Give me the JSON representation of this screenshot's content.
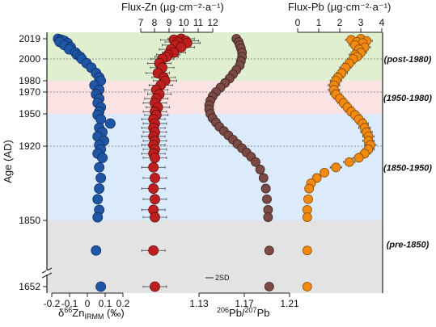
{
  "chart_data": {
    "type": "scatter",
    "colors": {
      "zn_isotope": "#1f57a6",
      "zn_flux": "#c01f1f",
      "pb_ratio": "#7b4a45",
      "pb_flux": "#f28a10",
      "band_post1980": "#e0efd0",
      "band_1950_1980": "#fbe3e3",
      "band_1850_1950": "#dcebfb",
      "band_pre1850": "#e3e3e3"
    },
    "y_axis": {
      "label": "Age (AD)",
      "ticks": [
        "2019",
        "2000",
        "1980",
        "1970",
        "1950",
        "1920",
        "1850",
        "1652"
      ],
      "break": "between 1850 and 1652"
    },
    "periods": [
      {
        "label": "(post-1980)",
        "from": 1980,
        "to": 2019
      },
      {
        "label": "(1950-1980)",
        "from": 1950,
        "to": 1980
      },
      {
        "label": "(1850-1950)",
        "from": 1850,
        "to": 1950
      },
      {
        "label": "(pre-1850)",
        "from": 1652,
        "to": 1850
      }
    ],
    "axes": {
      "zn_isotope": {
        "label_prefix": "δ",
        "label_sup1": "66",
        "label_mid": "Zn",
        "label_sub": "IRMM",
        "label_suffix": " (‰)",
        "ticks": [
          "-0.2",
          "-0.1",
          "0",
          "0.1",
          "0.2"
        ],
        "range": [
          -0.2,
          0.25
        ],
        "position": "bottom"
      },
      "zn_flux": {
        "label": "Flux-Zn  (µg·cm⁻²·a⁻¹)",
        "ticks": [
          "7",
          "8",
          "9",
          "10",
          "11",
          "12"
        ],
        "range": [
          6.6,
          12.3
        ],
        "position": "top"
      },
      "pb_ratio": {
        "label_sup": "206",
        "label_mid": "Pb/",
        "label_sup2": "207",
        "label_end": "Pb",
        "ticks": [
          "1.13",
          "1.17",
          "1.21"
        ],
        "range": [
          1.13,
          1.21
        ],
        "position": "bottom"
      },
      "pb_flux": {
        "label": "Flux-Pb  (µg·cm⁻²·a⁻¹)",
        "ticks": [
          "0",
          "1",
          "2",
          "3",
          "4"
        ],
        "range": [
          -0.4,
          4.0
        ],
        "position": "top"
      }
    },
    "annotation_2sd": "2SD",
    "series": {
      "zn_isotope": [
        {
          "year": 2019,
          "value": -0.16,
          "err": 0.03
        },
        {
          "year": 2018,
          "value": -0.14,
          "err": 0.03
        },
        {
          "year": 2017,
          "value": -0.12,
          "err": 0.03
        },
        {
          "year": 2016,
          "value": -0.15,
          "err": 0.03
        },
        {
          "year": 2015,
          "value": -0.1,
          "err": 0.03
        },
        {
          "year": 2013,
          "value": -0.12,
          "err": 0.03
        },
        {
          "year": 2011,
          "value": -0.08,
          "err": 0.03
        },
        {
          "year": 2009,
          "value": -0.09,
          "err": 0.03
        },
        {
          "year": 2006,
          "value": -0.05,
          "err": 0.03
        },
        {
          "year": 2004,
          "value": -0.04,
          "err": 0.03
        },
        {
          "year": 2002,
          "value": -0.02,
          "err": 0.03
        },
        {
          "year": 2000,
          "value": -0.01,
          "err": 0.03
        },
        {
          "year": 1996,
          "value": 0.02,
          "err": 0.03
        },
        {
          "year": 1992,
          "value": 0.05,
          "err": 0.03
        },
        {
          "year": 1987,
          "value": 0.08,
          "err": 0.03
        },
        {
          "year": 1983,
          "value": 0.1,
          "err": 0.03
        },
        {
          "year": 1980,
          "value": 0.11,
          "err": 0.03
        },
        {
          "year": 1976,
          "value": 0.07,
          "err": 0.03
        },
        {
          "year": 1972,
          "value": 0.1,
          "err": 0.03
        },
        {
          "year": 1968,
          "value": 0.08,
          "err": 0.03
        },
        {
          "year": 1964,
          "value": 0.1,
          "err": 0.03
        },
        {
          "year": 1960,
          "value": 0.09,
          "err": 0.03
        },
        {
          "year": 1956,
          "value": 0.11,
          "err": 0.03
        },
        {
          "year": 1952,
          "value": 0.1,
          "err": 0.03
        },
        {
          "year": 1949,
          "value": 0.09,
          "err": 0.03
        },
        {
          "year": 1945,
          "value": 0.11,
          "err": 0.03
        },
        {
          "year": 1941,
          "value": 0.17,
          "err": 0.03
        },
        {
          "year": 1937,
          "value": 0.1,
          "err": 0.03
        },
        {
          "year": 1933,
          "value": 0.12,
          "err": 0.03
        },
        {
          "year": 1929,
          "value": 0.09,
          "err": 0.03
        },
        {
          "year": 1925,
          "value": 0.13,
          "err": 0.03
        },
        {
          "year": 1921,
          "value": 0.1,
          "err": 0.03
        },
        {
          "year": 1917,
          "value": 0.11,
          "err": 0.03
        },
        {
          "year": 1913,
          "value": 0.09,
          "err": 0.03
        },
        {
          "year": 1909,
          "value": 0.12,
          "err": 0.03
        },
        {
          "year": 1900,
          "value": 0.1,
          "err": 0.03
        },
        {
          "year": 1890,
          "value": 0.11,
          "err": 0.03
        },
        {
          "year": 1880,
          "value": 0.1,
          "err": 0.03
        },
        {
          "year": 1870,
          "value": 0.09,
          "err": 0.03
        },
        {
          "year": 1860,
          "value": 0.1,
          "err": 0.03
        },
        {
          "year": 1853,
          "value": 0.09,
          "err": 0.03
        },
        {
          "year": 1760,
          "value": 0.08,
          "err": 0.03
        },
        {
          "year": 1652,
          "value": 0.11,
          "err": 0.03
        }
      ],
      "zn_flux": [
        {
          "year": 2019,
          "value": 9.7,
          "err": 0.9
        },
        {
          "year": 2018,
          "value": 9.2,
          "err": 0.9
        },
        {
          "year": 2017,
          "value": 10.0,
          "err": 0.9
        },
        {
          "year": 2016,
          "value": 9.5,
          "err": 0.9
        },
        {
          "year": 2015,
          "value": 10.1,
          "err": 0.9
        },
        {
          "year": 2013,
          "value": 9.3,
          "err": 0.9
        },
        {
          "year": 2011,
          "value": 9.7,
          "err": 0.9
        },
        {
          "year": 2009,
          "value": 9.0,
          "err": 0.8
        },
        {
          "year": 2006,
          "value": 9.2,
          "err": 0.8
        },
        {
          "year": 2004,
          "value": 8.8,
          "err": 0.8
        },
        {
          "year": 2002,
          "value": 8.7,
          "err": 0.8
        },
        {
          "year": 2000,
          "value": 8.4,
          "err": 0.8
        },
        {
          "year": 1996,
          "value": 8.2,
          "err": 0.8
        },
        {
          "year": 1992,
          "value": 8.4,
          "err": 0.8
        },
        {
          "year": 1987,
          "value": 8.1,
          "err": 0.8
        },
        {
          "year": 1983,
          "value": 8.5,
          "err": 0.8
        },
        {
          "year": 1980,
          "value": 8.6,
          "err": 0.8
        },
        {
          "year": 1976,
          "value": 8.3,
          "err": 0.8
        },
        {
          "year": 1972,
          "value": 8.0,
          "err": 0.8
        },
        {
          "year": 1968,
          "value": 8.2,
          "err": 0.8
        },
        {
          "year": 1964,
          "value": 8.0,
          "err": 0.8
        },
        {
          "year": 1960,
          "value": 7.9,
          "err": 0.8
        },
        {
          "year": 1956,
          "value": 8.1,
          "err": 0.8
        },
        {
          "year": 1952,
          "value": 7.9,
          "err": 0.8
        },
        {
          "year": 1949,
          "value": 8.0,
          "err": 0.8
        },
        {
          "year": 1945,
          "value": 7.8,
          "err": 0.8
        },
        {
          "year": 1941,
          "value": 7.9,
          "err": 0.8
        },
        {
          "year": 1937,
          "value": 7.8,
          "err": 0.8
        },
        {
          "year": 1933,
          "value": 7.9,
          "err": 0.8
        },
        {
          "year": 1929,
          "value": 7.8,
          "err": 0.8
        },
        {
          "year": 1925,
          "value": 7.9,
          "err": 0.8
        },
        {
          "year": 1921,
          "value": 7.8,
          "err": 0.8
        },
        {
          "year": 1917,
          "value": 7.9,
          "err": 0.8
        },
        {
          "year": 1913,
          "value": 7.8,
          "err": 0.8
        },
        {
          "year": 1909,
          "value": 7.9,
          "err": 0.8
        },
        {
          "year": 1900,
          "value": 7.8,
          "err": 0.8
        },
        {
          "year": 1890,
          "value": 7.9,
          "err": 0.8
        },
        {
          "year": 1880,
          "value": 7.8,
          "err": 0.8
        },
        {
          "year": 1870,
          "value": 7.9,
          "err": 0.8
        },
        {
          "year": 1860,
          "value": 7.8,
          "err": 0.8
        },
        {
          "year": 1853,
          "value": 7.9,
          "err": 0.8
        },
        {
          "year": 1760,
          "value": 7.8,
          "err": 0.8
        },
        {
          "year": 1652,
          "value": 7.9,
          "err": 0.8
        }
      ],
      "pb_ratio": [
        {
          "year": 2019,
          "value": 1.163
        },
        {
          "year": 2016,
          "value": 1.165
        },
        {
          "year": 2013,
          "value": 1.166
        },
        {
          "year": 2010,
          "value": 1.167
        },
        {
          "year": 2006,
          "value": 1.168
        },
        {
          "year": 2002,
          "value": 1.168
        },
        {
          "year": 1998,
          "value": 1.167
        },
        {
          "year": 1994,
          "value": 1.166
        },
        {
          "year": 1990,
          "value": 1.163
        },
        {
          "year": 1986,
          "value": 1.16
        },
        {
          "year": 1982,
          "value": 1.157
        },
        {
          "year": 1978,
          "value": 1.153
        },
        {
          "year": 1974,
          "value": 1.149
        },
        {
          "year": 1970,
          "value": 1.145
        },
        {
          "year": 1966,
          "value": 1.142
        },
        {
          "year": 1962,
          "value": 1.14
        },
        {
          "year": 1958,
          "value": 1.139
        },
        {
          "year": 1954,
          "value": 1.139
        },
        {
          "year": 1950,
          "value": 1.14
        },
        {
          "year": 1946,
          "value": 1.142
        },
        {
          "year": 1942,
          "value": 1.145
        },
        {
          "year": 1938,
          "value": 1.148
        },
        {
          "year": 1934,
          "value": 1.152
        },
        {
          "year": 1930,
          "value": 1.156
        },
        {
          "year": 1926,
          "value": 1.16
        },
        {
          "year": 1922,
          "value": 1.164
        },
        {
          "year": 1918,
          "value": 1.168
        },
        {
          "year": 1914,
          "value": 1.172
        },
        {
          "year": 1910,
          "value": 1.176
        },
        {
          "year": 1905,
          "value": 1.18
        },
        {
          "year": 1898,
          "value": 1.184
        },
        {
          "year": 1890,
          "value": 1.187
        },
        {
          "year": 1880,
          "value": 1.189
        },
        {
          "year": 1870,
          "value": 1.19
        },
        {
          "year": 1860,
          "value": 1.191
        },
        {
          "year": 1853,
          "value": 1.191
        },
        {
          "year": 1760,
          "value": 1.192
        },
        {
          "year": 1652,
          "value": 1.192
        }
      ],
      "pb_flux": [
        {
          "year": 2019,
          "value": 2.9,
          "err": 0.3
        },
        {
          "year": 2018,
          "value": 2.4,
          "err": 0.3
        },
        {
          "year": 2017,
          "value": 3.2,
          "err": 0.3
        },
        {
          "year": 2016,
          "value": 2.7,
          "err": 0.3
        },
        {
          "year": 2015,
          "value": 3.0,
          "err": 0.3
        },
        {
          "year": 2013,
          "value": 2.6,
          "err": 0.3
        },
        {
          "year": 2011,
          "value": 3.1,
          "err": 0.3
        },
        {
          "year": 2009,
          "value": 2.8,
          "err": 0.3
        },
        {
          "year": 2006,
          "value": 2.9,
          "err": 0.3
        },
        {
          "year": 2004,
          "value": 2.6,
          "err": 0.3
        },
        {
          "year": 2002,
          "value": 2.7,
          "err": 0.3
        },
        {
          "year": 2000,
          "value": 2.5,
          "err": 0.3
        },
        {
          "year": 1996,
          "value": 2.3,
          "err": 0.3
        },
        {
          "year": 1992,
          "value": 2.1,
          "err": 0.3
        },
        {
          "year": 1987,
          "value": 1.9,
          "err": 0.3
        },
        {
          "year": 1983,
          "value": 1.7,
          "err": 0.3
        },
        {
          "year": 1980,
          "value": 1.6,
          "err": 0.3
        },
        {
          "year": 1976,
          "value": 1.5,
          "err": 0.3
        },
        {
          "year": 1972,
          "value": 1.5,
          "err": 0.3
        },
        {
          "year": 1968,
          "value": 1.6,
          "err": 0.3
        },
        {
          "year": 1964,
          "value": 1.8,
          "err": 0.3
        },
        {
          "year": 1960,
          "value": 2.0,
          "err": 0.3
        },
        {
          "year": 1956,
          "value": 2.2,
          "err": 0.3
        },
        {
          "year": 1952,
          "value": 2.4,
          "err": 0.3
        },
        {
          "year": 1949,
          "value": 2.6,
          "err": 0.3
        },
        {
          "year": 1945,
          "value": 2.8,
          "err": 0.3
        },
        {
          "year": 1941,
          "value": 3.0,
          "err": 0.3
        },
        {
          "year": 1937,
          "value": 3.1,
          "err": 0.3
        },
        {
          "year": 1933,
          "value": 3.2,
          "err": 0.3
        },
        {
          "year": 1929,
          "value": 3.3,
          "err": 0.3
        },
        {
          "year": 1925,
          "value": 3.3,
          "err": 0.3
        },
        {
          "year": 1921,
          "value": 3.4,
          "err": 0.3
        },
        {
          "year": 1917,
          "value": 3.3,
          "err": 0.3
        },
        {
          "year": 1913,
          "value": 3.1,
          "err": 0.3
        },
        {
          "year": 1909,
          "value": 2.8,
          "err": 0.3
        },
        {
          "year": 1905,
          "value": 2.3,
          "err": 0.3
        },
        {
          "year": 1900,
          "value": 1.6,
          "err": 0.3
        },
        {
          "year": 1895,
          "value": 1.0,
          "err": 0.2
        },
        {
          "year": 1890,
          "value": 0.6,
          "err": 0.2
        },
        {
          "year": 1885,
          "value": 0.3,
          "err": 0.1
        },
        {
          "year": 1880,
          "value": 0.2,
          "err": 0.1
        },
        {
          "year": 1870,
          "value": 0.15,
          "err": 0.1
        },
        {
          "year": 1860,
          "value": 0.1,
          "err": 0.1
        },
        {
          "year": 1853,
          "value": 0.1,
          "err": 0.1
        },
        {
          "year": 1760,
          "value": 0.1,
          "err": 0.1
        },
        {
          "year": 1652,
          "value": 0.1,
          "err": 0.1
        }
      ]
    }
  }
}
